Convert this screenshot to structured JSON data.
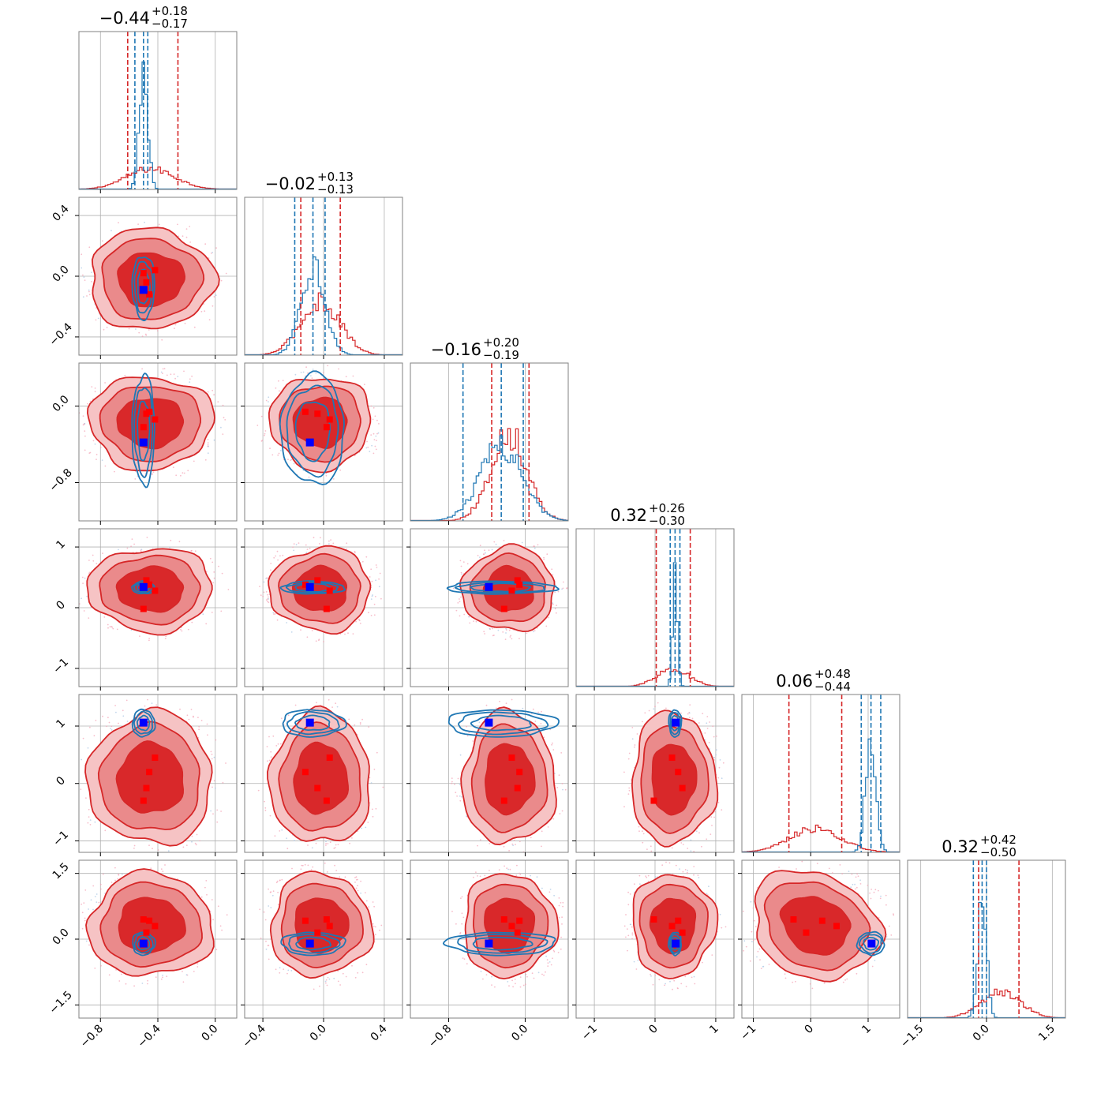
{
  "chart_data": {
    "type": "corner",
    "n_params": 6,
    "colors": {
      "red": "#d62728",
      "blue": "#1f77b4",
      "truth_red": "#ff0000",
      "truth_blue": "#0000ff",
      "grid": "#b0b0b0"
    },
    "titles": [
      {
        "median": "−0.44",
        "plus": "+0.18",
        "minus": "−0.17"
      },
      {
        "median": "−0.02",
        "plus": "+0.13",
        "minus": "−0.13"
      },
      {
        "median": "−0.16",
        "plus": "+0.20",
        "minus": "−0.19"
      },
      {
        "median": "0.32",
        "plus": "+0.26",
        "minus": "−0.30"
      },
      {
        "median": "0.06",
        "plus": "+0.48",
        "minus": "−0.44"
      },
      {
        "median": "0.32",
        "plus": "+0.42",
        "minus": "−0.50"
      }
    ],
    "ranges": [
      [
        -0.95,
        0.15
      ],
      [
        -0.52,
        0.52
      ],
      [
        -1.2,
        0.45
      ],
      [
        -1.3,
        1.3
      ],
      [
        -1.2,
        1.55
      ],
      [
        -1.8,
        1.8
      ]
    ],
    "ticks": [
      {
        "values": [
          -0.8,
          -0.4,
          0.0
        ],
        "labels": [
          "−0.8",
          "−0.4",
          "0.0"
        ]
      },
      {
        "values": [
          -0.4,
          0.0,
          0.4
        ],
        "labels": [
          "−0.4",
          "0.0",
          "0.4"
        ]
      },
      {
        "values": [
          -0.8,
          0.0
        ],
        "labels": [
          "−0.8",
          "0.0"
        ]
      },
      {
        "values": [
          -1,
          0,
          1
        ],
        "labels": [
          "−1",
          "0",
          "1"
        ]
      },
      {
        "values": [
          -1,
          0,
          1
        ],
        "labels": [
          "−1",
          "0",
          "1"
        ]
      },
      {
        "values": [
          -1.5,
          0.0,
          1.5
        ],
        "labels": [
          "−1.5",
          "0.0",
          "1.5"
        ]
      }
    ],
    "red_posterior": {
      "mean": [
        -0.45,
        -0.02,
        -0.17,
        0.3,
        0.08,
        0.32
      ],
      "sd": [
        0.17,
        0.13,
        0.19,
        0.27,
        0.45,
        0.46
      ],
      "quantiles": [
        [
          -0.61,
          -0.26
        ],
        [
          -0.15,
          0.11
        ],
        [
          -0.35,
          0.04
        ],
        [
          0.02,
          0.58
        ],
        [
          -0.38,
          0.54
        ],
        [
          -0.18,
          0.74
        ]
      ],
      "correlation_4_5": -0.5
    },
    "blue_posterior": {
      "mean": [
        -0.5,
        -0.07,
        -0.25,
        0.33,
        1.05,
        -0.1
      ],
      "sd": [
        0.03,
        0.08,
        0.22,
        0.04,
        0.09,
        0.1
      ],
      "quantiles": [
        [
          -0.56,
          -0.47
        ],
        [
          -0.19,
          0.01
        ],
        [
          -0.65,
          -0.02
        ],
        [
          0.25,
          0.41
        ],
        [
          0.88,
          1.22
        ],
        [
          -0.3,
          0.0
        ]
      ]
    },
    "truth_blue": [
      -0.5,
      -0.09,
      -0.38,
      0.34,
      1.06,
      -0.1
    ],
    "red_markers": [
      [
        -0.48,
        -0.04,
        -0.08,
        0.45,
        -0.08,
        0.15
      ],
      [
        -0.42,
        0.04,
        -0.14,
        0.28,
        0.45,
        0.3
      ],
      [
        -0.5,
        0.02,
        -0.22,
        -0.02,
        -0.3,
        0.45
      ],
      [
        -0.46,
        -0.12,
        -0.06,
        0.38,
        0.2,
        0.42
      ]
    ]
  }
}
